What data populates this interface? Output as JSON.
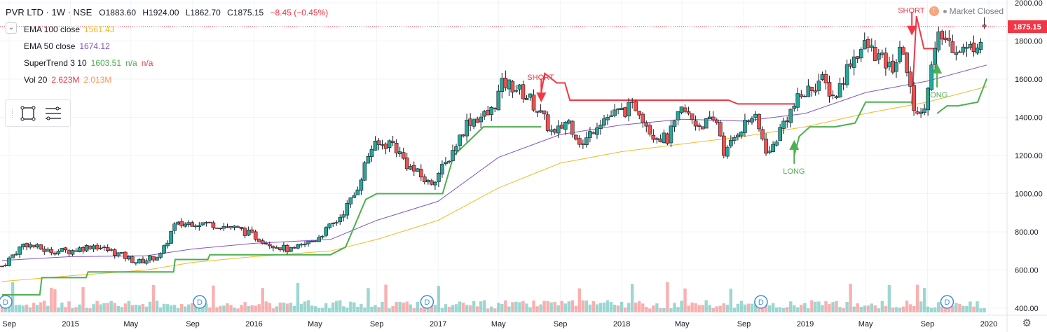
{
  "header": {
    "symbol": "PVR LTD · 1W · NSE",
    "open": "O1883.60",
    "high": "H1924.00",
    "low": "L1862.70",
    "close": "C1875.15",
    "change": "−8.45 (−0.45%)",
    "market_status": "Market Closed"
  },
  "indicators": [
    {
      "name": "EMA 100 close",
      "value": "1561.43",
      "value_color": "#f2b92a"
    },
    {
      "name": "EMA 50 close",
      "value": "1674.12",
      "value_color": "#7e57c2"
    },
    {
      "name": "SuperTrend 3 10",
      "value": "1603.51",
      "extra1": "n/a",
      "extra2": "n/a",
      "value_color": "#4caf50",
      "extra2_color": "#f23645"
    },
    {
      "name": "Vol 20",
      "value": "2.623M",
      "extra1": "2.013M",
      "value_color": "#f23645",
      "extra1_color": "#ff9850"
    }
  ],
  "price_label": "1875.15",
  "icons": {
    "collapse": "chevron-down-icon",
    "rect_tool": "rectangle-icon",
    "menu_tool": "list-icon",
    "settings": "gear-icon",
    "warning": "warning-icon"
  },
  "colors": {
    "up": "#26a69a",
    "down": "#ef5350",
    "ema100": "#f2b92a",
    "ema50": "#7e57c2",
    "supertrend_up": "#4caf50",
    "supertrend_down": "#f23645",
    "grid": "#f0f3fa",
    "price_line": "#f23645"
  },
  "chart_data": {
    "type": "candlestick",
    "title": "PVR LTD · 1W · NSE",
    "ylim": [
      380,
      2020
    ],
    "y_ticks": [
      400,
      600,
      800,
      1000,
      1200,
      1400,
      1600,
      1800,
      2000
    ],
    "y_tick_labels": [
      "400.00",
      "600.00",
      "800.00",
      "1000.00",
      "1200.00",
      "1400.00",
      "1600.00",
      "1800.00",
      "2000.00"
    ],
    "x_ticks": [
      {
        "label": "Sep",
        "date": "2014-09-01"
      },
      {
        "label": "2015",
        "date": "2015-01-01"
      },
      {
        "label": "May",
        "date": "2015-05-01"
      },
      {
        "label": "Sep",
        "date": "2015-09-01"
      },
      {
        "label": "2016",
        "date": "2016-01-01"
      },
      {
        "label": "May",
        "date": "2016-05-01"
      },
      {
        "label": "Sep",
        "date": "2016-09-01"
      },
      {
        "label": "2017",
        "date": "2017-01-01"
      },
      {
        "label": "May",
        "date": "2017-05-01"
      },
      {
        "label": "Sep",
        "date": "2017-09-01"
      },
      {
        "label": "2018",
        "date": "2018-01-01"
      },
      {
        "label": "May",
        "date": "2018-05-01"
      },
      {
        "label": "Sep",
        "date": "2018-09-01"
      },
      {
        "label": "2019",
        "date": "2019-01-01"
      },
      {
        "label": "May",
        "date": "2019-05-01"
      },
      {
        "label": "Sep",
        "date": "2019-09-01"
      },
      {
        "label": "2020",
        "date": "2020-01-01"
      }
    ],
    "close_points": [
      [
        "2014-08-18",
        620
      ],
      [
        "2014-10-01",
        740
      ],
      [
        "2014-11-15",
        700
      ],
      [
        "2015-01-01",
        700
      ],
      [
        "2015-02-15",
        730
      ],
      [
        "2015-04-01",
        690
      ],
      [
        "2015-05-15",
        640
      ],
      [
        "2015-07-01",
        680
      ],
      [
        "2015-07-25",
        830
      ],
      [
        "2015-09-01",
        850
      ],
      [
        "2015-10-15",
        840
      ],
      [
        "2015-12-01",
        815
      ],
      [
        "2016-02-01",
        740
      ],
      [
        "2016-03-15",
        700
      ],
      [
        "2016-05-01",
        760
      ],
      [
        "2016-06-15",
        860
      ],
      [
        "2016-07-20",
        1000
      ],
      [
        "2016-08-20",
        1240
      ],
      [
        "2016-10-01",
        1270
      ],
      [
        "2016-11-01",
        1150
      ],
      [
        "2016-12-15",
        1050
      ],
      [
        "2017-01-15",
        1150
      ],
      [
        "2017-03-01",
        1380
      ],
      [
        "2017-04-15",
        1420
      ],
      [
        "2017-05-10",
        1580
      ],
      [
        "2017-06-01",
        1560
      ],
      [
        "2017-07-01",
        1500
      ],
      [
        "2017-07-20",
        1430
      ],
      [
        "2017-08-20",
        1300
      ],
      [
        "2017-09-15",
        1390
      ],
      [
        "2017-10-15",
        1250
      ],
      [
        "2017-11-15",
        1380
      ],
      [
        "2017-12-20",
        1420
      ],
      [
        "2018-02-01",
        1460
      ],
      [
        "2018-03-01",
        1320
      ],
      [
        "2018-04-01",
        1280
      ],
      [
        "2018-05-01",
        1440
      ],
      [
        "2018-06-01",
        1360
      ],
      [
        "2018-07-10",
        1380
      ],
      [
        "2018-07-25",
        1200
      ],
      [
        "2018-08-20",
        1330
      ],
      [
        "2018-09-20",
        1410
      ],
      [
        "2018-10-20",
        1200
      ],
      [
        "2018-11-20",
        1380
      ],
      [
        "2018-12-20",
        1500
      ],
      [
        "2019-02-01",
        1600
      ],
      [
        "2019-03-01",
        1500
      ],
      [
        "2019-04-01",
        1700
      ],
      [
        "2019-05-01",
        1780
      ],
      [
        "2019-05-25",
        1720
      ],
      [
        "2019-06-20",
        1650
      ],
      [
        "2019-07-15",
        1760
      ],
      [
        "2019-08-01",
        1480
      ],
      [
        "2019-08-20",
        1400
      ],
      [
        "2019-09-05",
        1620
      ],
      [
        "2019-09-25",
        1830
      ],
      [
        "2019-10-20",
        1780
      ],
      [
        "2019-11-20",
        1750
      ],
      [
        "2019-12-10",
        1800
      ],
      [
        "2019-12-28",
        1875
      ]
    ],
    "ema50": [
      [
        "2014-08-18",
        650
      ],
      [
        "2015-01-01",
        670
      ],
      [
        "2015-06-01",
        675
      ],
      [
        "2015-09-01",
        710
      ],
      [
        "2016-01-01",
        740
      ],
      [
        "2016-06-01",
        760
      ],
      [
        "2016-09-01",
        860
      ],
      [
        "2017-01-01",
        960
      ],
      [
        "2017-05-01",
        1190
      ],
      [
        "2017-09-01",
        1310
      ],
      [
        "2018-01-01",
        1360
      ],
      [
        "2018-05-01",
        1390
      ],
      [
        "2018-09-01",
        1380
      ],
      [
        "2019-01-01",
        1420
      ],
      [
        "2019-05-01",
        1530
      ],
      [
        "2019-09-01",
        1590
      ],
      [
        "2019-12-28",
        1674
      ]
    ],
    "ema100": [
      [
        "2014-08-18",
        540
      ],
      [
        "2015-01-01",
        570
      ],
      [
        "2015-06-01",
        600
      ],
      [
        "2015-09-01",
        640
      ],
      [
        "2016-01-01",
        670
      ],
      [
        "2016-06-01",
        700
      ],
      [
        "2016-09-01",
        760
      ],
      [
        "2017-01-01",
        860
      ],
      [
        "2017-05-01",
        1030
      ],
      [
        "2017-09-01",
        1160
      ],
      [
        "2018-01-01",
        1220
      ],
      [
        "2018-05-01",
        1260
      ],
      [
        "2018-09-01",
        1300
      ],
      [
        "2019-01-01",
        1350
      ],
      [
        "2019-05-01",
        1420
      ],
      [
        "2019-09-01",
        1480
      ],
      [
        "2019-12-28",
        1561
      ]
    ],
    "supertrend_up_1": [
      [
        "2014-08-18",
        470
      ],
      [
        "2014-11-01",
        470
      ],
      [
        "2014-11-05",
        560
      ],
      [
        "2015-02-01",
        560
      ],
      [
        "2015-02-05",
        590
      ],
      [
        "2015-07-25",
        590
      ],
      [
        "2015-07-28",
        655
      ],
      [
        "2015-10-01",
        655
      ],
      [
        "2015-10-05",
        680
      ],
      [
        "2016-06-01",
        680
      ],
      [
        "2016-07-01",
        720
      ],
      [
        "2016-08-10",
        970
      ],
      [
        "2016-09-01",
        1000
      ],
      [
        "2016-12-15",
        1000
      ],
      [
        "2017-01-10",
        1000
      ],
      [
        "2017-02-01",
        1200
      ],
      [
        "2017-03-01",
        1270
      ],
      [
        "2017-04-01",
        1350
      ],
      [
        "2017-07-25",
        1350
      ]
    ],
    "supertrend_down_1": [
      [
        "2017-07-25",
        1530
      ],
      [
        "2017-08-01",
        1630
      ],
      [
        "2017-08-25",
        1580
      ],
      [
        "2017-09-10",
        1580
      ],
      [
        "2017-09-20",
        1490
      ],
      [
        "2018-08-01",
        1490
      ],
      [
        "2018-08-20",
        1470
      ],
      [
        "2018-12-10",
        1470
      ]
    ],
    "supertrend_up_2": [
      [
        "2018-12-10",
        1200
      ],
      [
        "2018-12-20",
        1300
      ],
      [
        "2019-01-10",
        1350
      ],
      [
        "2019-03-01",
        1350
      ],
      [
        "2019-04-10",
        1370
      ],
      [
        "2019-05-01",
        1480
      ],
      [
        "2019-08-01",
        1480
      ]
    ],
    "supertrend_down_2": [
      [
        "2019-08-01",
        1470
      ],
      [
        "2019-08-10",
        1930
      ],
      [
        "2019-08-25",
        1760
      ],
      [
        "2019-09-20",
        1760
      ]
    ],
    "supertrend_up_3": [
      [
        "2019-09-20",
        1420
      ],
      [
        "2019-10-10",
        1460
      ],
      [
        "2019-11-01",
        1460
      ],
      [
        "2019-12-10",
        1480
      ],
      [
        "2019-12-28",
        1603
      ]
    ],
    "signals": [
      {
        "type": "SHORT",
        "date": "2017-07-25",
        "price": 1530
      },
      {
        "type": "LONG",
        "date": "2018-12-10",
        "price": 1230
      },
      {
        "type": "SHORT",
        "date": "2019-08-01",
        "price": 1880
      },
      {
        "type": "LONG",
        "date": "2019-09-20",
        "price": 1630
      }
    ],
    "events_D": [
      "2014-08-25",
      "2015-09-15",
      "2016-12-10",
      "2018-10-05",
      "2019-10-10"
    ],
    "last_price": 1875.15
  }
}
